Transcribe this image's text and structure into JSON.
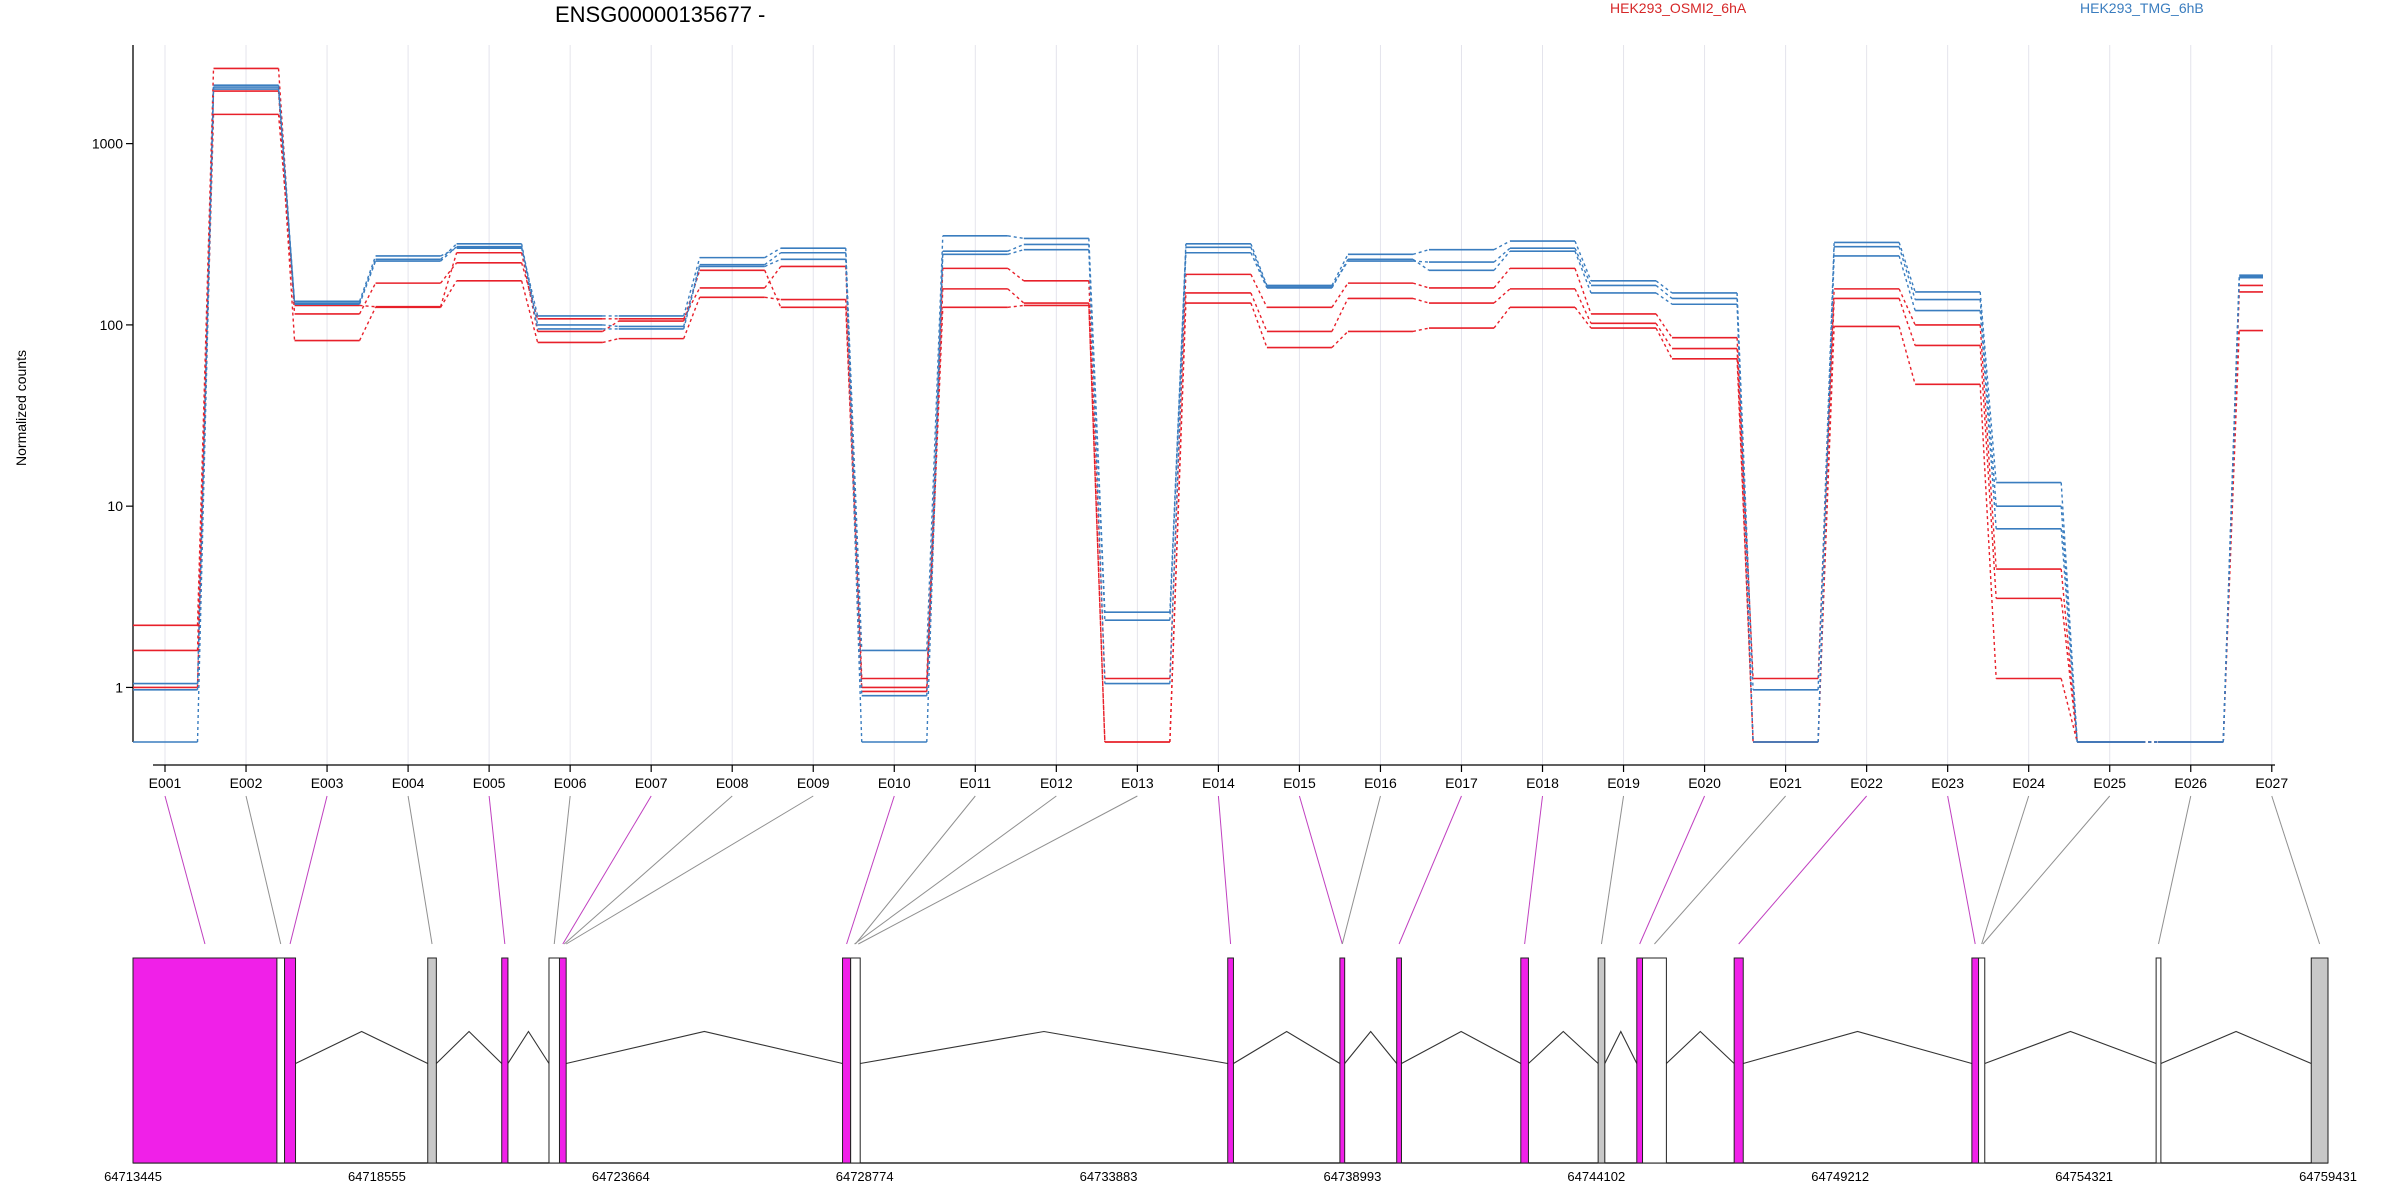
{
  "chart_data": {
    "type": "line",
    "title": "ENSG00000135677 -",
    "ylabel": "Normalized counts",
    "yscale": "log",
    "ylim": [
      0.5,
      3500
    ],
    "yticks": [
      1,
      10,
      100,
      1000
    ],
    "ytick_labels": [
      "1",
      "10",
      "100",
      "1000"
    ],
    "categories": [
      "E001",
      "E002",
      "E003",
      "E004",
      "E005",
      "E006",
      "E007",
      "E008",
      "E009",
      "E010",
      "E011",
      "E012",
      "E013",
      "E014",
      "E015",
      "E016",
      "E017",
      "E018",
      "E019",
      "E020",
      "E021",
      "E022",
      "E023",
      "E024",
      "E025",
      "E026",
      "E027"
    ],
    "legend": [
      "HEK293_OSMI2_6hA",
      "HEK293_TMG_6hB"
    ],
    "colors": {
      "osmi": "#e8202a",
      "tmg": "#3a7dbf",
      "exon_fill": "#f020e8",
      "exon_grey": "#c8c8c8",
      "exon_link_magenta": "#c040c0",
      "exon_link_grey": "#909090"
    },
    "series": [
      {
        "name": "HEK293_OSMI2_6hA",
        "group": "osmi",
        "values": [
          2.2,
          2600,
          115,
          170,
          220,
          108,
          108,
          160,
          210,
          1.12,
          205,
          175,
          1.12,
          190,
          125,
          170,
          160,
          205,
          115,
          85,
          1.12,
          158,
          100,
          4.5,
          0.5,
          0.5,
          165
        ]
      },
      {
        "name": "HEK293_OSMI2_6hA",
        "group": "osmi",
        "values": [
          1.6,
          1950,
          82,
          125,
          175,
          80,
          84,
          142,
          138,
          1.0,
          158,
          132,
          0.5,
          150,
          92,
          140,
          132,
          158,
          102,
          74,
          0.5,
          140,
          77,
          3.1,
          0.5,
          0.5,
          152
        ]
      },
      {
        "name": "HEK293_OSMI2_6hA",
        "group": "osmi",
        "values": [
          1.0,
          1450,
          128,
          126,
          250,
          92,
          105,
          200,
          125,
          0.95,
          125,
          128,
          0.5,
          132,
          75,
          92,
          96,
          125,
          96,
          65,
          0.5,
          98,
          47,
          1.12,
          0.5,
          0.5,
          93
        ]
      },
      {
        "name": "HEK293_TMG_6hB",
        "group": "tmg",
        "values": [
          1.05,
          2100,
          135,
          240,
          265,
          112,
          112,
          235,
          265,
          1.6,
          310,
          300,
          2.6,
          280,
          165,
          245,
          260,
          290,
          175,
          150,
          0.97,
          285,
          152,
          13.5,
          0.5,
          0.5,
          188
        ]
      },
      {
        "name": "HEK293_TMG_6hB",
        "group": "tmg",
        "values": [
          0.97,
          2050,
          132,
          230,
          280,
          100,
          98,
          215,
          250,
          0.9,
          255,
          278,
          2.35,
          268,
          162,
          225,
          222,
          265,
          165,
          140,
          0.5,
          270,
          138,
          10.0,
          0.5,
          0.5,
          182
        ]
      },
      {
        "name": "HEK293_TMG_6hB",
        "group": "tmg",
        "values": [
          0.5,
          2000,
          130,
          225,
          270,
          95,
          95,
          210,
          230,
          0.5,
          245,
          260,
          1.05,
          250,
          160,
          230,
          200,
          255,
          150,
          130,
          0.5,
          240,
          120,
          7.5,
          0.5,
          0.5,
          185
        ]
      }
    ],
    "gene_model": {
      "coordinates": [
        "64713445",
        "64718555",
        "64723664",
        "64728774",
        "64733883",
        "64738993",
        "64744102",
        "64749212",
        "64754321",
        "64759431"
      ],
      "coord_range": [
        64713445,
        64759431
      ],
      "exons": [
        {
          "start": 64713445,
          "end": 64716460,
          "color": "magenta",
          "link": 1
        },
        {
          "start": 64716460,
          "end": 64716620,
          "color": "white",
          "link": 2
        },
        {
          "start": 64716620,
          "end": 64716850,
          "color": "magenta",
          "link": 3
        },
        {
          "start": 64719620,
          "end": 64719800,
          "color": "grey",
          "link": 4
        },
        {
          "start": 64721170,
          "end": 64721300,
          "color": "magenta",
          "link": 5
        },
        {
          "start": 64722160,
          "end": 64722380,
          "color": "white",
          "link": 6
        },
        {
          "start": 64722380,
          "end": 64722520,
          "color": "magenta",
          "link": 7
        },
        {
          "start": 64728310,
          "end": 64728480,
          "color": "magenta",
          "link": 10
        },
        {
          "start": 64728480,
          "end": 64728680,
          "color": "white",
          "link": 11
        },
        {
          "start": 64736380,
          "end": 64736500,
          "color": "magenta",
          "link": 14
        },
        {
          "start": 64738730,
          "end": 64738830,
          "color": "magenta",
          "link": 15
        },
        {
          "start": 64739920,
          "end": 64740020,
          "color": "magenta",
          "link": 17
        },
        {
          "start": 64742520,
          "end": 64742680,
          "color": "magenta",
          "link": 18
        },
        {
          "start": 64744140,
          "end": 64744280,
          "color": "grey",
          "link": 19
        },
        {
          "start": 64744950,
          "end": 64745070,
          "color": "magenta",
          "link": 20
        },
        {
          "start": 64745070,
          "end": 64745570,
          "color": "white",
          "link": 21
        },
        {
          "start": 64746990,
          "end": 64747180,
          "color": "magenta",
          "link": 22
        },
        {
          "start": 64751970,
          "end": 64752110,
          "color": "magenta",
          "link": 23
        },
        {
          "start": 64752110,
          "end": 64752240,
          "color": "white",
          "link": 24
        },
        {
          "start": 64755830,
          "end": 64755930,
          "color": "white",
          "link": 26
        },
        {
          "start": 64759080,
          "end": 64759431,
          "color": "grey",
          "link": 27
        }
      ]
    }
  }
}
